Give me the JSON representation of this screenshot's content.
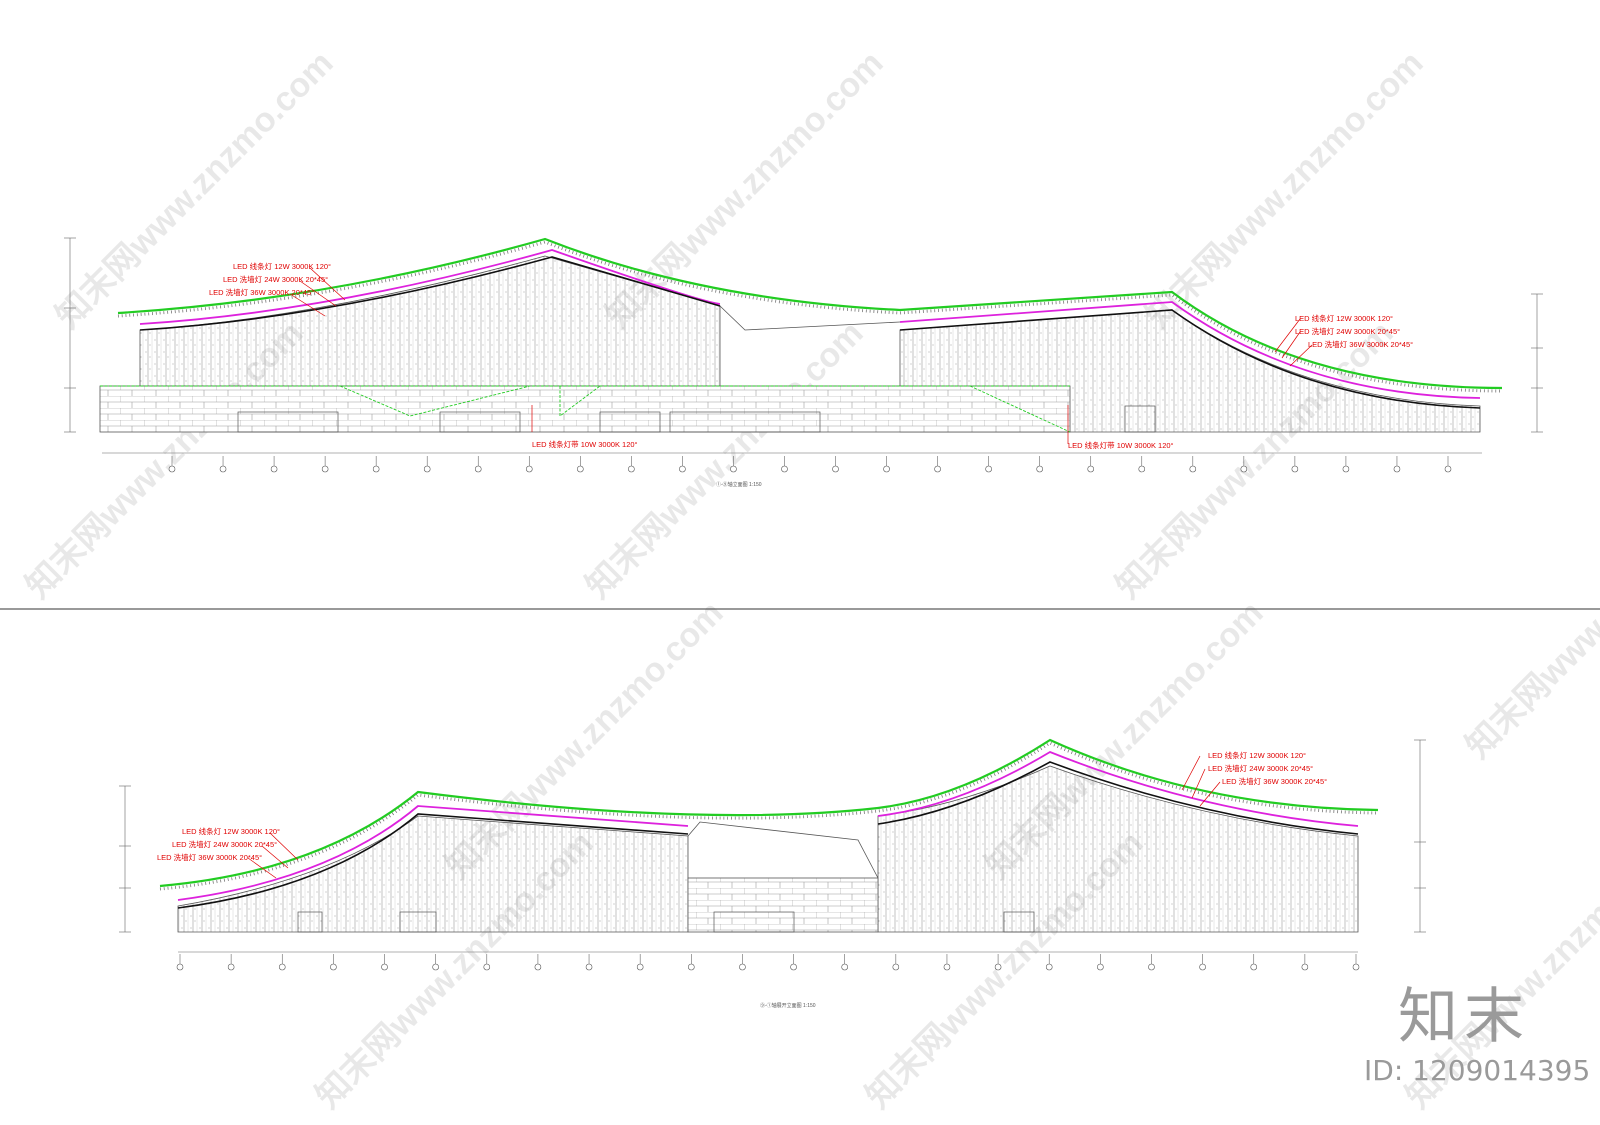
{
  "watermarks": {
    "site": "www.znzmo.com",
    "brand_cn": "知末网",
    "brand_large": "知末",
    "image_id": "ID: 1209014395"
  },
  "colors": {
    "led_label": "#e00000",
    "roof_green": "#22cc22",
    "roof_magenta": "#dd22dd",
    "roof_black": "#111111",
    "linework": "#555555"
  },
  "elevation_1": {
    "title": "①-⑨轴立面图 1:150",
    "left_labels": [
      "LED 线条灯 12W 3000K 120°",
      "LED 洗墙灯 24W 3000K 20*45°",
      "LED 洗墙灯 36W 3000K 20*45°"
    ],
    "right_labels": [
      "LED 线条灯 12W 3000K 120°",
      "LED 洗墙灯 24W 3000K 20*45°",
      "LED 洗墙灯 36W 3000K 20*45°"
    ],
    "bottom_labels": [
      "LED 线条灯带 10W 3000K 120°",
      "LED 线条灯带 10W 3000K 120°"
    ]
  },
  "elevation_2": {
    "title": "⑨-①轴展开立面图 1:150",
    "left_labels": [
      "LED 线条灯 12W 3000K 120°",
      "LED 洗墙灯 24W 3000K 20*45°",
      "LED 洗墙灯 36W 3000K 20*45°"
    ],
    "right_labels": [
      "LED 线条灯 12W 3000K 120°",
      "LED 洗墙灯 24W 3000K 20*45°",
      "LED 洗墙灯 36W 3000K 20*45°"
    ]
  }
}
